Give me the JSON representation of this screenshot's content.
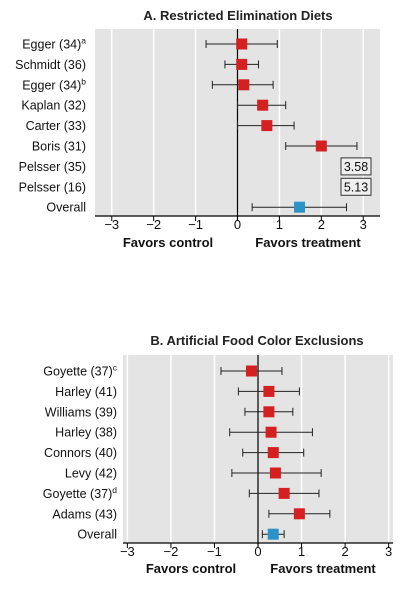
{
  "chart_data": [
    {
      "type": "forest",
      "title": "A. Restricted Elimination Diets",
      "xlim": [
        -3.4,
        3.4
      ],
      "xticks": [
        "−3",
        "−2",
        "−1",
        "0",
        "1",
        "2",
        "3"
      ],
      "xlabel_left": "Favors control",
      "xlabel_right": "Favors treatment",
      "studies": [
        {
          "label": "Egger (34)",
          "sup": "a",
          "est": 0.1,
          "lo": -0.75,
          "hi": 0.95
        },
        {
          "label": "Schmidt (36)",
          "sup": "",
          "est": 0.1,
          "lo": -0.3,
          "hi": 0.5
        },
        {
          "label": "Egger (34)",
          "sup": "b",
          "est": 0.15,
          "lo": -0.6,
          "hi": 0.85
        },
        {
          "label": "Kaplan (32)",
          "sup": "",
          "est": 0.6,
          "lo": 0.0,
          "hi": 1.15
        },
        {
          "label": "Carter (33)",
          "sup": "",
          "est": 0.7,
          "lo": 0.0,
          "hi": 1.35
        },
        {
          "label": "Boris (31)",
          "sup": "",
          "est": 2.0,
          "lo": 1.15,
          "hi": 2.85
        },
        {
          "label": "Pelsser (35)",
          "sup": "",
          "value_box": "3.58"
        },
        {
          "label": "Pelsser (16)",
          "sup": "",
          "value_box": "5.13"
        }
      ],
      "overall": {
        "label": "Overall",
        "est": 1.48,
        "lo": 0.35,
        "hi": 2.6
      }
    },
    {
      "type": "forest",
      "title": "B. Artificial Food Color Exclusions",
      "xlim": [
        -3.1,
        3.1
      ],
      "xticks": [
        "−3",
        "−2",
        "−1",
        "0",
        "1",
        "2",
        "3"
      ],
      "xlabel_left": "Favors control",
      "xlabel_right": "Favors treatment",
      "studies": [
        {
          "label": "Goyette (37)",
          "sup": "c",
          "est": -0.15,
          "lo": -0.85,
          "hi": 0.55
        },
        {
          "label": "Harley (41)",
          "sup": "",
          "est": 0.25,
          "lo": -0.45,
          "hi": 0.95
        },
        {
          "label": "Williams (39)",
          "sup": "",
          "est": 0.25,
          "lo": -0.3,
          "hi": 0.8
        },
        {
          "label": "Harley (38)",
          "sup": "",
          "est": 0.3,
          "lo": -0.65,
          "hi": 1.25
        },
        {
          "label": "Connors (40)",
          "sup": "",
          "est": 0.35,
          "lo": -0.35,
          "hi": 1.05
        },
        {
          "label": "Levy (42)",
          "sup": "",
          "est": 0.4,
          "lo": -0.6,
          "hi": 1.45
        },
        {
          "label": "Goyette (37)",
          "sup": "d",
          "est": 0.6,
          "lo": -0.2,
          "hi": 1.4
        },
        {
          "label": "Adams (43)",
          "sup": "",
          "est": 0.95,
          "lo": 0.25,
          "hi": 1.65
        }
      ],
      "overall": {
        "label": "Overall",
        "est": 0.35,
        "lo": 0.1,
        "hi": 0.6
      }
    }
  ],
  "colors": {
    "plot_bg": "#e4e4e4",
    "study_marker": "#d42020",
    "overall_marker": "#2b93c8",
    "gridline": "#ffffff",
    "axis": "#000000"
  }
}
